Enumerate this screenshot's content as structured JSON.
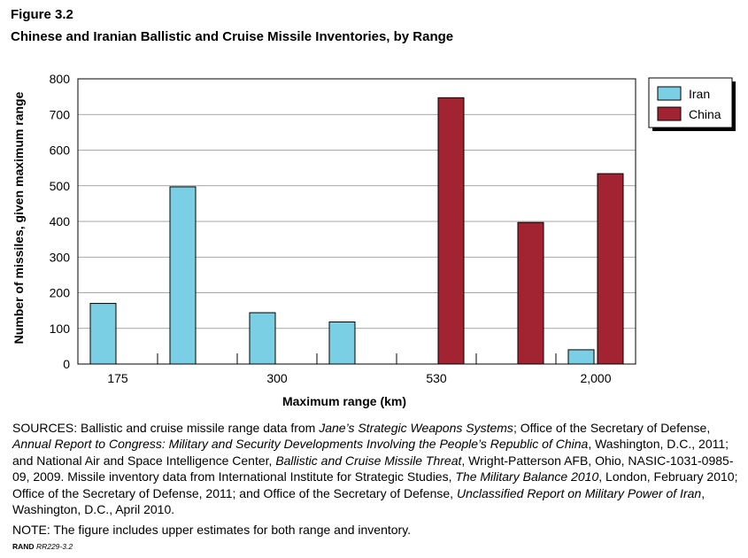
{
  "figure_label": "Figure 3.2",
  "title": "Chinese and Iranian Ballistic and Cruise Missile Inventories, by Range",
  "chart_data": {
    "type": "bar",
    "xlabel": "Maximum range (km)",
    "ylabel": "Number of missiles, given maximum range",
    "ylim": [
      0,
      800
    ],
    "yticks": [
      0,
      100,
      200,
      300,
      400,
      500,
      600,
      700,
      800
    ],
    "grid": true,
    "legend_position": "top-right",
    "category_count": 7,
    "x_tick_labels": [
      {
        "slot": 0,
        "label": "175"
      },
      {
        "slot": 2,
        "label": "300"
      },
      {
        "slot": 4,
        "label": "530"
      },
      {
        "slot": 6,
        "label": "2,000"
      }
    ],
    "series": [
      {
        "name": "Iran",
        "color": "#7bcfe4",
        "values": [
          170,
          497,
          144,
          118,
          0,
          0,
          40
        ]
      },
      {
        "name": "China",
        "color": "#a22433",
        "values": [
          0,
          0,
          0,
          0,
          747,
          397,
          534
        ]
      }
    ]
  },
  "sources": {
    "segments": [
      {
        "t": "SOURCES: Ballistic and cruise missile range data from "
      },
      {
        "t": "Jane’s Strategic Weapons Systems",
        "i": true
      },
      {
        "t": "; Office of the Secretary of Defense, "
      },
      {
        "t": "Annual Report to Congress: Military and Security Developments Involving the People’s Republic of China",
        "i": true
      },
      {
        "t": ", Washington, D.C., 2011; and National Air and Space Intelligence Center, "
      },
      {
        "t": "Ballistic and Cruise Missile Threat",
        "i": true
      },
      {
        "t": ", Wright-Patterson AFB, Ohio, NASIC-1031-0985-09, 2009. Missile inventory data from International Institute for Strategic Studies, "
      },
      {
        "t": "The Military Balance 2010",
        "i": true
      },
      {
        "t": ", London, February 2010; Office of the Secretary of Defense, 2011; and Office of the Secretary of Defense, "
      },
      {
        "t": "Unclassified Report on Military Power of Iran",
        "i": true
      },
      {
        "t": ", Washington, D.C., April 2010."
      }
    ]
  },
  "note": "NOTE: The figure includes upper estimates for both range and inventory.",
  "credit": {
    "org": "RAND",
    "id": "RR229-3.2"
  }
}
